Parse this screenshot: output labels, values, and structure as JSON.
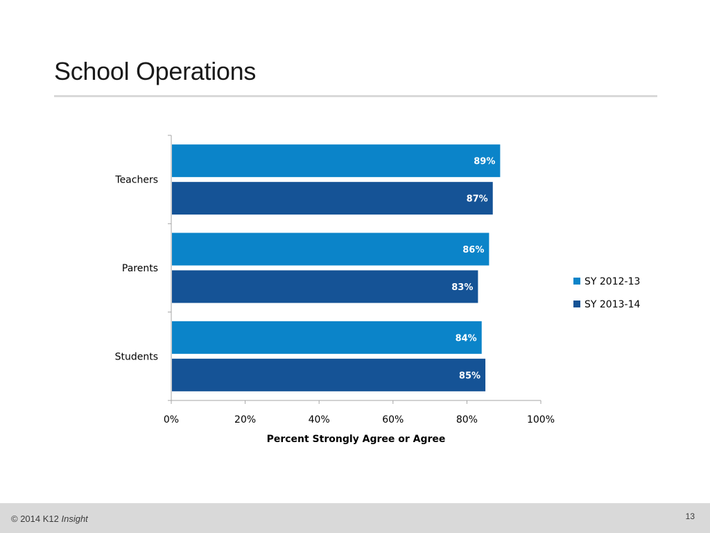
{
  "slide": {
    "title": "School Operations",
    "footer": {
      "copyright": "© 2014 K12",
      "brand": "Insight",
      "page_number": "13"
    }
  },
  "colors": {
    "series1": "#0b84c9",
    "series2": "#155396",
    "axis": "#a6a6a6"
  },
  "chart_data": {
    "type": "bar",
    "orientation": "horizontal",
    "title": "",
    "categories": [
      "Teachers",
      "Parents",
      "Students"
    ],
    "series": [
      {
        "name": "SY 2012-13",
        "values": [
          89,
          86,
          84
        ],
        "labels": [
          "89%",
          "86%",
          "84%"
        ]
      },
      {
        "name": "SY 2013-14",
        "values": [
          87,
          83,
          85
        ],
        "labels": [
          "87%",
          "83%",
          "85%"
        ]
      }
    ],
    "xlabel": "Percent Strongly Agree or Agree",
    "ylabel": "",
    "xlim": [
      0,
      100
    ],
    "xticks": [
      0,
      20,
      40,
      60,
      80,
      100
    ],
    "xtick_labels": [
      "0%",
      "20%",
      "40%",
      "60%",
      "80%",
      "100%"
    ],
    "legend_position": "right",
    "grid": false
  }
}
